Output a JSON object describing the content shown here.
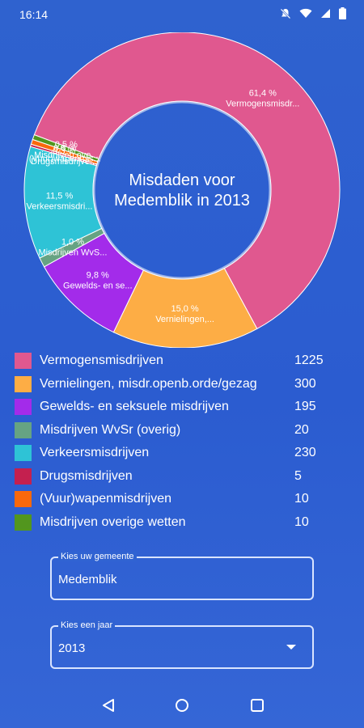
{
  "status_bar": {
    "time": "16:14"
  },
  "chart_data": {
    "type": "pie",
    "title": "Misdaden voor Medemblik in 2013",
    "title_lines": [
      "Misdaden voor",
      "Medemblik in 2013"
    ],
    "slices": [
      {
        "name": "Vermogensmisdrijven",
        "value": 1225,
        "percent": "61,4 %",
        "label": "Vermogensmisdr...",
        "color": "#e0588f"
      },
      {
        "name": "Vernielingen, misdr.openb.orde/gezag",
        "value": 300,
        "percent": "15,0 %",
        "label": "Vernielingen,...",
        "color": "#fdad45"
      },
      {
        "name": "Gewelds- en seksuele misdrijven",
        "value": 195,
        "percent": "9,8 %",
        "label": "Gewelds- en se...",
        "color": "#a32bea"
      },
      {
        "name": "Misdrijven WvSr (overig)",
        "value": 20,
        "percent": "1,0 %",
        "label": "Misdrijven WvS...",
        "color": "#66a383"
      },
      {
        "name": "Verkeersmisdrijven",
        "value": 230,
        "percent": "11,5 %",
        "label": "Verkeersmisdri...",
        "color": "#2ec3d6"
      },
      {
        "name": "Drugsmisdrijven",
        "value": 5,
        "percent": "0,3 %",
        "label": "Drugsmisdrijve...",
        "color": "#c4204f"
      },
      {
        "name": "(Vuur)wapenmisdrijven",
        "value": 10,
        "percent": "0,5 %",
        "label": "(Vuur)wapenmis...",
        "color": "#f9680c"
      },
      {
        "name": "Misdrijven overige wetten",
        "value": 10,
        "percent": "0,5 %",
        "label": "Misdrijven ove...",
        "color": "#52961e"
      }
    ]
  },
  "municipality_field": {
    "label": "Kies uw gemeente",
    "value": "Medemblik"
  },
  "year_field": {
    "label": "Kies een jaar",
    "value": "2013"
  }
}
